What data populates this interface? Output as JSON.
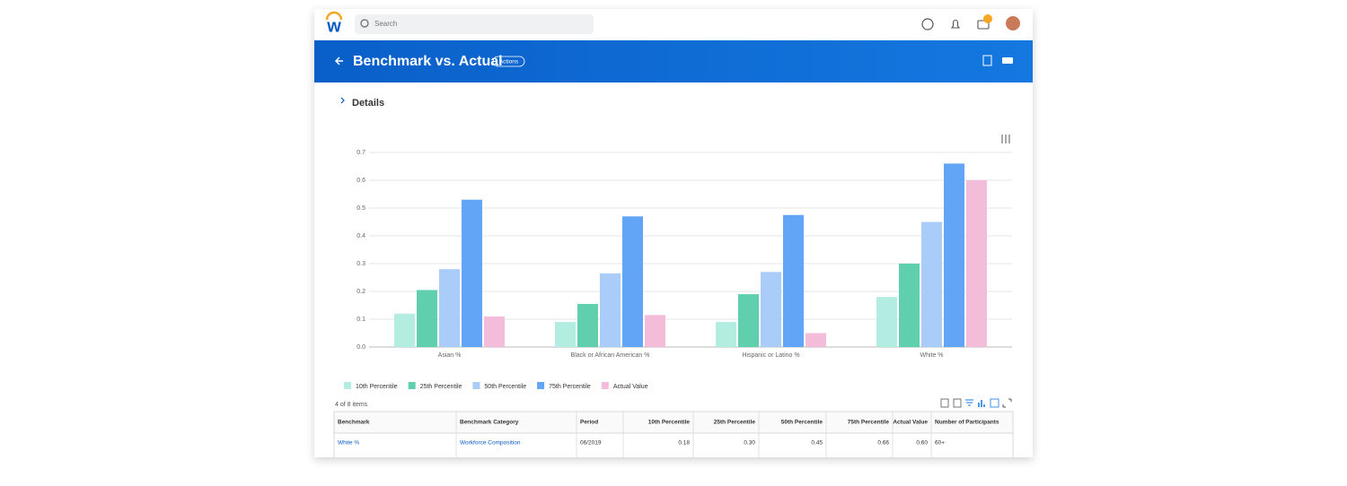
{
  "topbar": {
    "search_placeholder": "Search"
  },
  "header": {
    "title": "Benchmark vs. Actual",
    "actions": "Actions"
  },
  "section": {
    "title": "Details"
  },
  "chart_data": {
    "type": "bar",
    "categories": [
      "Asian %",
      "Black or African American %",
      "Hispanic or Latino %",
      "White %"
    ],
    "series": [
      {
        "name": "10th Percentile",
        "color": "#b3ece0",
        "values": [
          0.12,
          0.09,
          0.09,
          0.18
        ]
      },
      {
        "name": "25th Percentile",
        "color": "#5fcfad",
        "values": [
          0.205,
          0.155,
          0.19,
          0.3
        ]
      },
      {
        "name": "50th Percentile",
        "color": "#a9ccf8",
        "values": [
          0.28,
          0.265,
          0.27,
          0.45
        ]
      },
      {
        "name": "75th Percentile",
        "color": "#62a4f5",
        "values": [
          0.53,
          0.47,
          0.475,
          0.66
        ]
      },
      {
        "name": "Actual Value",
        "color": "#f3bcd8",
        "values": [
          0.11,
          0.115,
          0.05,
          0.6
        ]
      }
    ],
    "ylim": [
      0,
      0.7
    ],
    "yticks": [
      {
        "value": 0,
        "label": "0.0"
      },
      0.1,
      0.2,
      0.3,
      0.4,
      0.5,
      0.6,
      0.7
    ],
    "grid": true
  },
  "table": {
    "count": "4 of 8 items",
    "columns": [
      "Benchmark",
      "Benchmark Category",
      "Period",
      "10th Percentile",
      "25th Percentile",
      "50th Percentile",
      "75th Percentile",
      "Actual Value",
      "Number of Participants"
    ],
    "rows": [
      [
        "White %",
        "Workforce Composition",
        "06/2019",
        "0.18",
        "0.30",
        "0.45",
        "0.66",
        "0.60",
        "60+"
      ]
    ]
  }
}
